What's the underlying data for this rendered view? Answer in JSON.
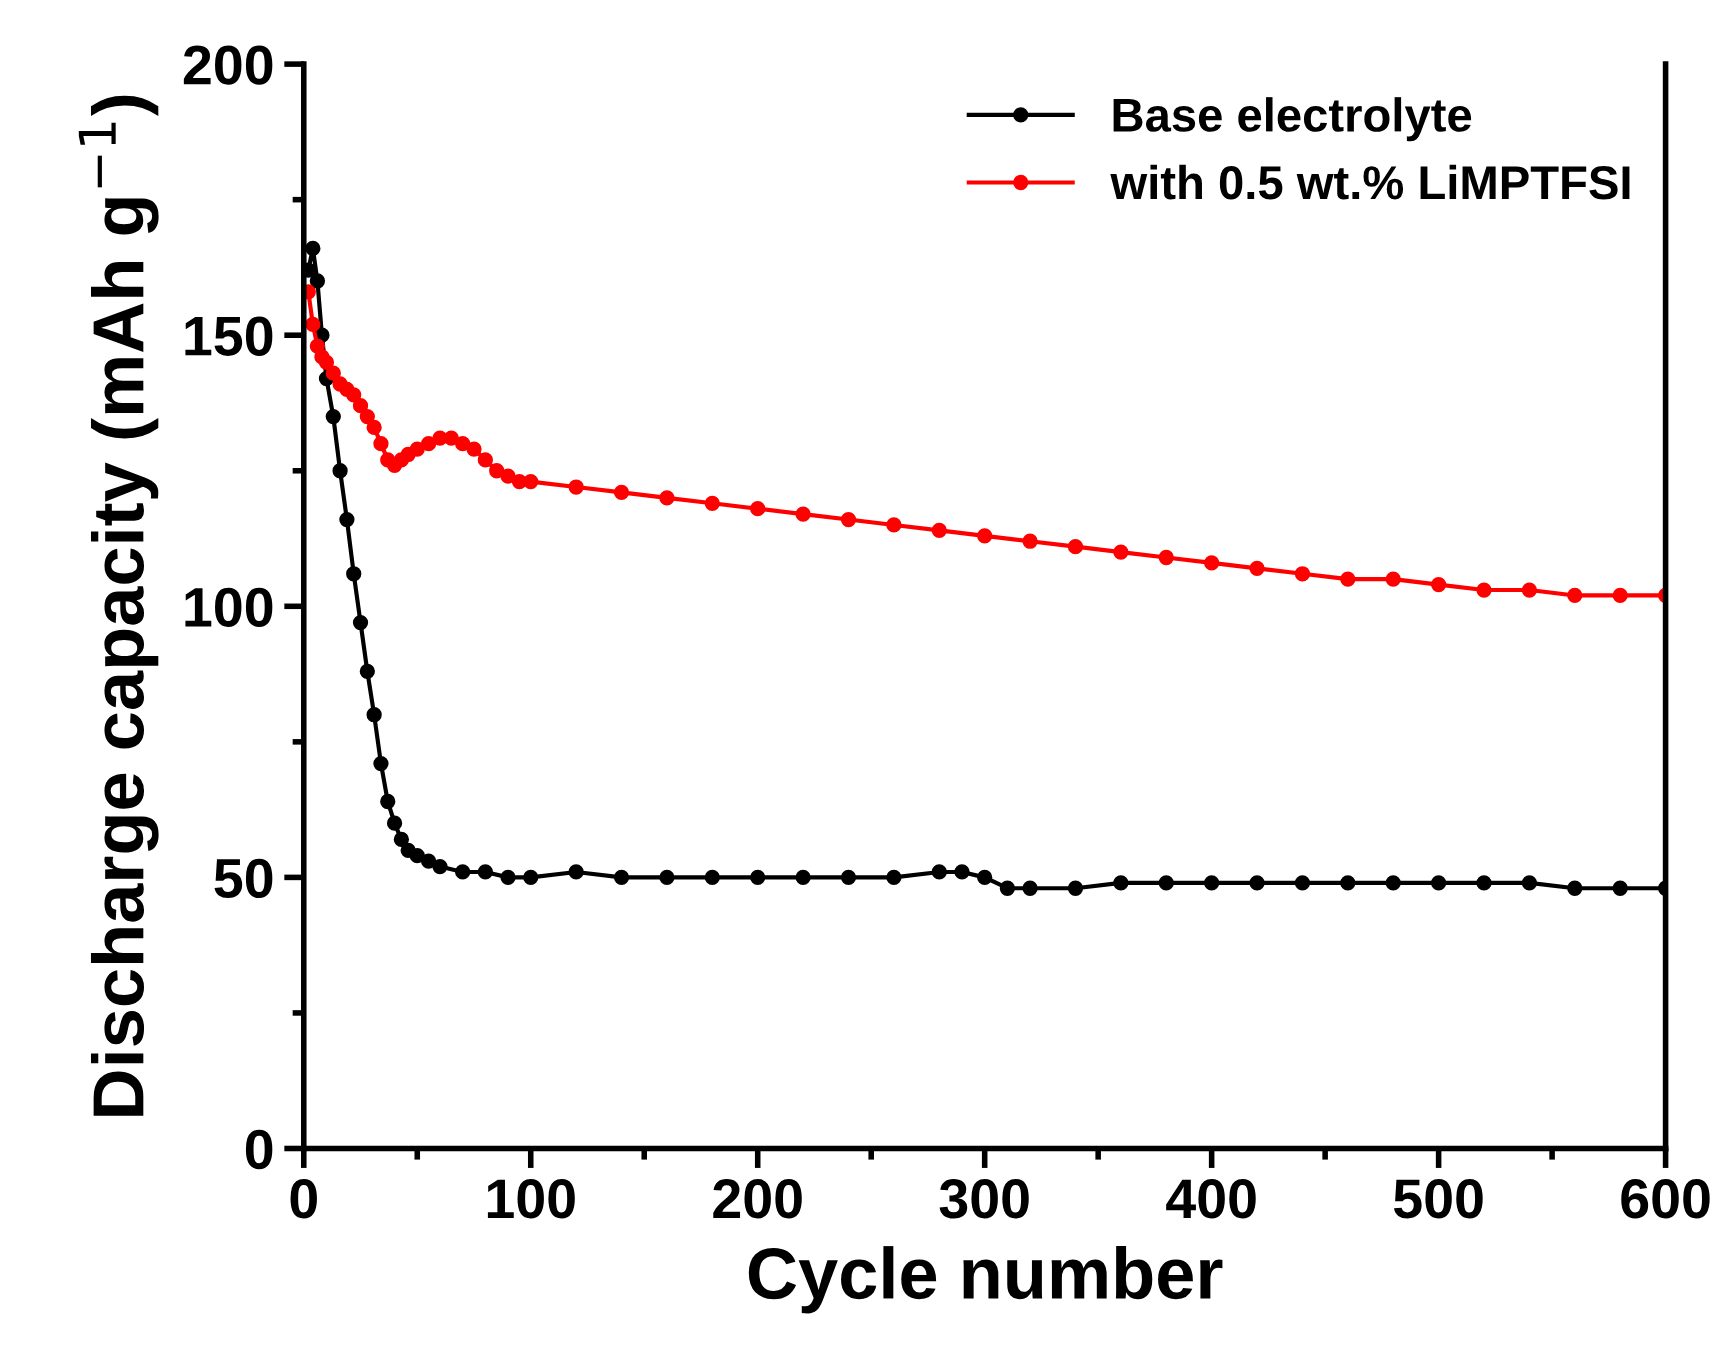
{
  "chart_data": {
    "type": "line",
    "xlabel": "Cycle number",
    "ylabel": "Discharge capacity (mAh g$^{−1}$)",
    "xlim": [
      0,
      600
    ],
    "ylim": [
      0,
      200
    ],
    "xticks": [
      0,
      {
        "value": 50,
        "label": null
      },
      100,
      {
        "value": 150,
        "label": null
      },
      200,
      {
        "value": 250,
        "label": null
      },
      300,
      {
        "value": 350,
        "label": null
      },
      400,
      {
        "value": 450,
        "label": null
      },
      500,
      {
        "value": 550,
        "label": null
      },
      600
    ],
    "yticks": [
      0,
      {
        "value": 25,
        "label": null
      },
      50,
      {
        "value": 75,
        "label": null
      },
      100,
      {
        "value": 125,
        "label": null
      },
      150,
      {
        "value": 175,
        "label": null
      },
      200
    ],
    "legend": "top right",
    "marker": "circle",
    "line_style": "solid",
    "grid": false,
    "series": [
      {
        "name": "Base electrolyte",
        "color": "#000000",
        "x": [
          2,
          4,
          6,
          8,
          10,
          13,
          16,
          19,
          22,
          25,
          28,
          31,
          34,
          37,
          40,
          43,
          46,
          50,
          55,
          60,
          70,
          80,
          90,
          100,
          120,
          140,
          160,
          180,
          200,
          220,
          240,
          260,
          280,
          290,
          300,
          310,
          320,
          340,
          360,
          380,
          400,
          420,
          440,
          460,
          480,
          500,
          520,
          540,
          560,
          580,
          600
        ],
        "values": [
          162,
          166,
          160,
          150,
          142,
          135,
          125,
          116,
          106,
          97,
          88,
          80,
          71,
          64,
          60,
          57,
          55,
          54,
          53,
          52,
          51,
          51,
          50,
          50,
          51,
          50,
          50,
          50,
          50,
          50,
          50,
          50,
          51,
          51,
          50,
          48,
          48,
          48,
          49,
          49,
          49,
          49,
          49,
          49,
          49,
          49,
          49,
          49,
          48,
          48,
          48
        ]
      },
      {
        "name": "with 0.5 wt.% LiMPTFSI",
        "color": "#ff0000",
        "x": [
          2,
          4,
          6,
          8,
          10,
          13,
          16,
          19,
          22,
          25,
          28,
          31,
          34,
          37,
          40,
          43,
          46,
          50,
          55,
          60,
          65,
          70,
          75,
          80,
          85,
          90,
          95,
          100,
          120,
          140,
          160,
          180,
          200,
          220,
          240,
          260,
          280,
          300,
          320,
          340,
          360,
          380,
          400,
          420,
          440,
          460,
          480,
          500,
          520,
          540,
          560,
          580,
          600
        ],
        "values": [
          158,
          152,
          148,
          146,
          145,
          143,
          141,
          140,
          139,
          137,
          135,
          133,
          130,
          127,
          126,
          127,
          128,
          129,
          130,
          131,
          131,
          130,
          129,
          127,
          125,
          124,
          123,
          123,
          122,
          121,
          120,
          119,
          118,
          117,
          116,
          115,
          114,
          113,
          112,
          111,
          110,
          109,
          108,
          107,
          106,
          105,
          105,
          104,
          103,
          103,
          102,
          102,
          102
        ]
      }
    ]
  }
}
